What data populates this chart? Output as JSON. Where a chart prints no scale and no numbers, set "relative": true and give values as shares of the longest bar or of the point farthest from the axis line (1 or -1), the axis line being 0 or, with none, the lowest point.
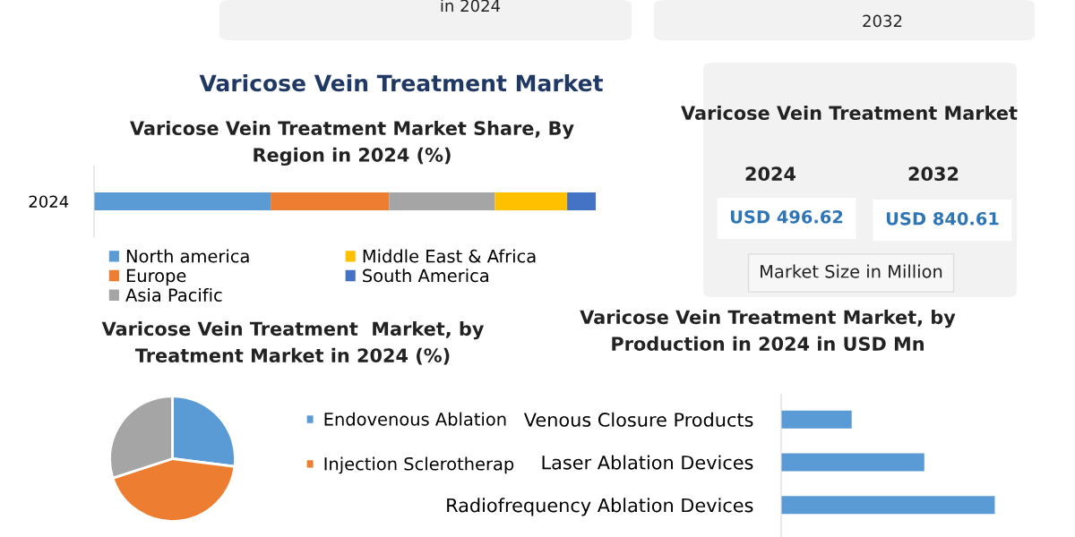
{
  "chart_data": [
    {
      "type": "other",
      "annotations": [
        "in 2024",
        "2032"
      ]
    },
    {
      "type": "bar",
      "title": "Varicose Vein Treatment Market",
      "subtitle": "Varicose Vein Treatment Market Share, By\nRegion in 2024 (%)",
      "orientation": "horizontal",
      "stacked": true,
      "relative": true,
      "categories": [
        "2024"
      ],
      "legend": "bottom",
      "series": [
        {
          "name": "North america",
          "color": "#5b9bd5",
          "values": [
            0.352
          ]
        },
        {
          "name": "Europe",
          "color": "#ed7d31",
          "values": [
            0.236
          ]
        },
        {
          "name": "Asia Pacific",
          "color": "#a5a5a5",
          "values": [
            0.211
          ]
        },
        {
          "name": "Middle East & Africa",
          "color": "#ffc000",
          "values": [
            0.144
          ]
        },
        {
          "name": "South America",
          "color": "#4472c4",
          "values": [
            0.057
          ]
        }
      ]
    },
    {
      "type": "other",
      "title": "Varicose Vein Treatment Market",
      "annotations": [
        "2024",
        "2032",
        "USD 496.62",
        "USD 840.61",
        "Market Size in Million"
      ]
    },
    {
      "type": "pie",
      "title": "Varicose Vein Treatment  Market, by\nTreatment Market in 2024 (%)",
      "categories": [
        "Endovenous Ablation",
        "Injection Sclerotherap",
        null
      ],
      "values": [
        27,
        43,
        30
      ],
      "colors": [
        "#5b9bd5",
        "#ed7d31",
        "#a5a5a5"
      ],
      "legend": "right"
    },
    {
      "type": "bar",
      "title": "Varicose Vein Treatment Market, by\nProduction in 2024 in USD Mn",
      "orientation": "horizontal",
      "relative": true,
      "categories": [
        "Venous Closure Products",
        "Laser Ablation Devices",
        "Radiofrequency Ablation Devices"
      ],
      "values": [
        0.33,
        0.67,
        1
      ],
      "color": "#5b9bd5"
    }
  ]
}
